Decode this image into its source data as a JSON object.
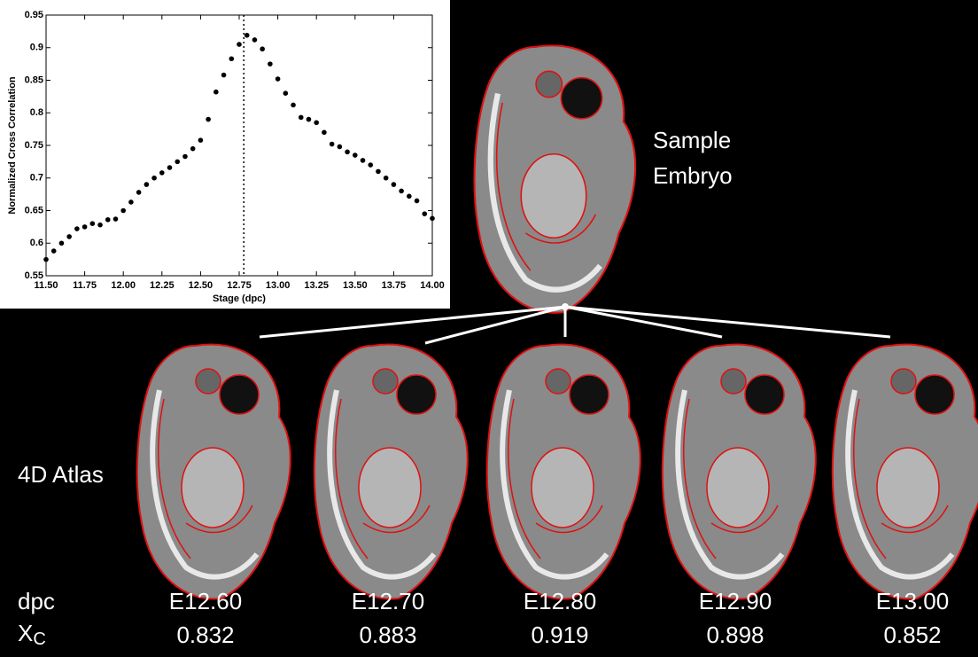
{
  "chart_data": {
    "type": "scatter",
    "xlabel": "Stage (dpc)",
    "ylabel": "Normalized Cross Correlation",
    "x": [
      11.5,
      11.55,
      11.6,
      11.65,
      11.7,
      11.75,
      11.8,
      11.85,
      11.9,
      11.95,
      12.0,
      12.05,
      12.1,
      12.15,
      12.2,
      12.25,
      12.3,
      12.35,
      12.4,
      12.45,
      12.5,
      12.55,
      12.6,
      12.65,
      12.7,
      12.75,
      12.8,
      12.85,
      12.9,
      12.95,
      13.0,
      13.05,
      13.1,
      13.15,
      13.2,
      13.25,
      13.3,
      13.35,
      13.4,
      13.45,
      13.5,
      13.55,
      13.6,
      13.65,
      13.7,
      13.75,
      13.8,
      13.85,
      13.9,
      13.95,
      14.0
    ],
    "values": [
      0.575,
      0.588,
      0.6,
      0.61,
      0.622,
      0.625,
      0.63,
      0.628,
      0.636,
      0.637,
      0.65,
      0.663,
      0.678,
      0.69,
      0.7,
      0.708,
      0.716,
      0.725,
      0.733,
      0.745,
      0.758,
      0.79,
      0.832,
      0.858,
      0.883,
      0.905,
      0.919,
      0.912,
      0.898,
      0.875,
      0.852,
      0.83,
      0.812,
      0.793,
      0.79,
      0.785,
      0.77,
      0.752,
      0.748,
      0.74,
      0.735,
      0.727,
      0.72,
      0.71,
      0.7,
      0.69,
      0.68,
      0.672,
      0.665,
      0.645,
      0.638
    ],
    "color": "#000000",
    "marker_x": 12.78,
    "xlim": [
      11.5,
      14.0
    ],
    "xticks": [
      {
        "value": 11.5,
        "label": "11.50"
      },
      {
        "value": 11.75,
        "label": "11.75"
      },
      {
        "value": 12.0,
        "label": "12.00"
      },
      {
        "value": 12.25,
        "label": "12.25"
      },
      {
        "value": 12.5,
        "label": "12.50"
      },
      {
        "value": 12.75,
        "label": "12.75"
      },
      {
        "value": 13.0,
        "label": "13.00"
      },
      {
        "value": 13.25,
        "label": "13.25"
      },
      {
        "value": 13.5,
        "label": "13.50"
      },
      {
        "value": 13.75,
        "label": "13.75"
      },
      {
        "value": 14.0,
        "label": "14.00"
      }
    ],
    "ylim": [
      0.55,
      0.95
    ],
    "yticks": [
      0.55,
      0.6,
      0.65,
      0.7,
      0.75,
      0.8,
      0.85,
      0.9,
      0.95
    ],
    "grid": false
  },
  "sample_label": [
    "Sample",
    "Embryo"
  ],
  "atlas_label": "4D Atlas",
  "dpc_label": "dpc",
  "xc_label": {
    "main": "X",
    "sub": "C"
  },
  "atlas": [
    {
      "stage": "E12.60",
      "xc": "0.832"
    },
    {
      "stage": "E12.70",
      "xc": "0.883"
    },
    {
      "stage": "E12.80",
      "xc": "0.919"
    },
    {
      "stage": "E12.90",
      "xc": "0.898"
    },
    {
      "stage": "E13.00",
      "xc": "0.852"
    }
  ]
}
